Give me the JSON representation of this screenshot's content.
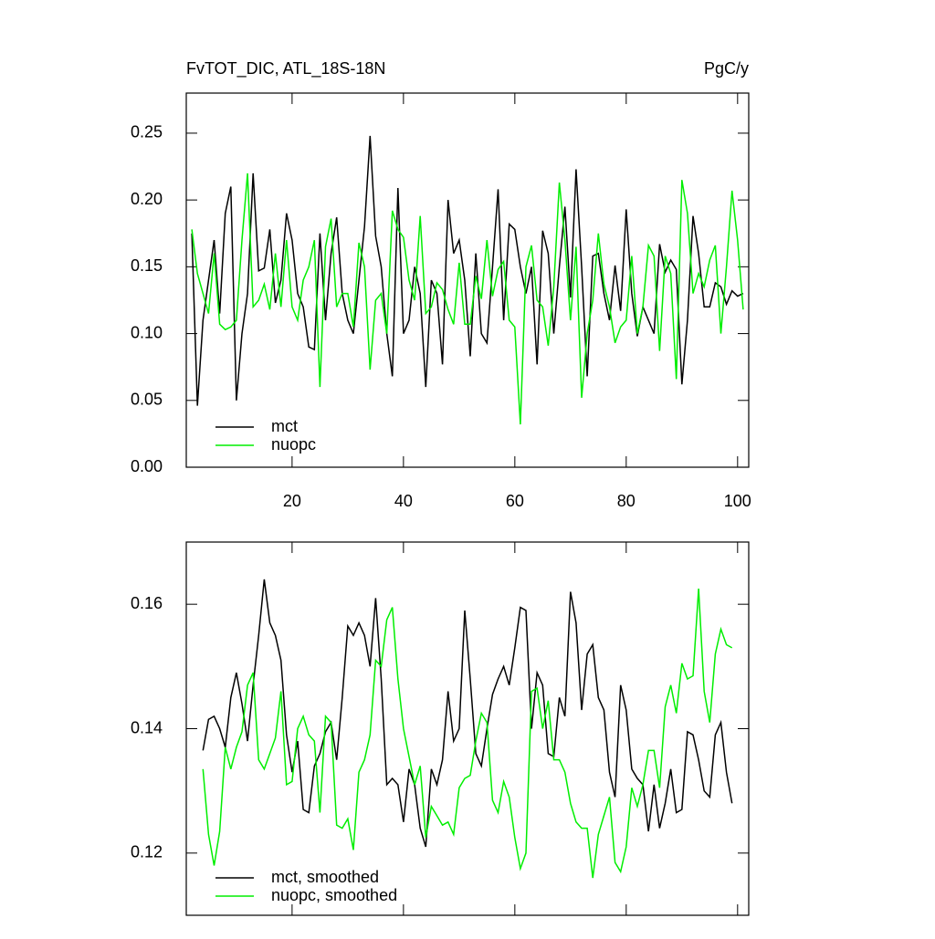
{
  "chart_data": [
    {
      "type": "line",
      "title": "FvTOT_DIC, ATL_18S-18N",
      "units": "PgC/y",
      "x": [
        2,
        3,
        4,
        5,
        6,
        7,
        8,
        9,
        10,
        11,
        12,
        13,
        14,
        15,
        16,
        17,
        18,
        19,
        20,
        21,
        22,
        23,
        24,
        25,
        26,
        27,
        28,
        29,
        30,
        31,
        32,
        33,
        34,
        35,
        36,
        37,
        38,
        39,
        40,
        41,
        42,
        43,
        44,
        45,
        46,
        47,
        48,
        49,
        50,
        51,
        52,
        53,
        54,
        55,
        56,
        57,
        58,
        59,
        60,
        61,
        62,
        63,
        64,
        65,
        66,
        67,
        68,
        69,
        70,
        71,
        72,
        73,
        74,
        75,
        76,
        77,
        78,
        79,
        80,
        81,
        82,
        83,
        84,
        85,
        86,
        87,
        88,
        89,
        90,
        91,
        92,
        93,
        94,
        95,
        96,
        97,
        98,
        99,
        100,
        101
      ],
      "series": [
        {
          "name": "mct",
          "color": "#000000",
          "values": [
            0.175,
            0.046,
            0.11,
            0.14,
            0.17,
            0.115,
            0.19,
            0.21,
            0.05,
            0.1,
            0.13,
            0.22,
            0.147,
            0.149,
            0.178,
            0.123,
            0.14,
            0.19,
            0.17,
            0.13,
            0.12,
            0.09,
            0.088,
            0.175,
            0.11,
            0.16,
            0.187,
            0.13,
            0.11,
            0.1,
            0.14,
            0.18,
            0.248,
            0.173,
            0.15,
            0.1,
            0.068,
            0.209,
            0.1,
            0.11,
            0.15,
            0.13,
            0.06,
            0.14,
            0.13,
            0.077,
            0.2,
            0.16,
            0.17,
            0.14,
            0.083,
            0.16,
            0.1,
            0.093,
            0.15,
            0.208,
            0.11,
            0.182,
            0.178,
            0.15,
            0.13,
            0.15,
            0.077,
            0.177,
            0.16,
            0.1,
            0.15,
            0.195,
            0.127,
            0.223,
            0.15,
            0.068,
            0.158,
            0.16,
            0.13,
            0.11,
            0.151,
            0.117,
            0.193,
            0.13,
            0.098,
            0.12,
            0.11,
            0.1,
            0.167,
            0.146,
            0.155,
            0.148,
            0.062,
            0.11,
            0.188,
            0.16,
            0.12,
            0.12,
            0.138,
            0.135,
            0.122,
            0.132,
            0.128,
            0.13
          ]
        },
        {
          "name": "nuopc",
          "color": "#00ee00",
          "values": [
            0.178,
            0.145,
            0.13,
            0.115,
            0.16,
            0.107,
            0.103,
            0.105,
            0.11,
            0.17,
            0.22,
            0.12,
            0.125,
            0.137,
            0.118,
            0.16,
            0.12,
            0.17,
            0.12,
            0.11,
            0.14,
            0.15,
            0.17,
            0.06,
            0.165,
            0.186,
            0.12,
            0.13,
            0.13,
            0.105,
            0.168,
            0.15,
            0.073,
            0.125,
            0.13,
            0.1,
            0.192,
            0.178,
            0.172,
            0.14,
            0.125,
            0.188,
            0.115,
            0.12,
            0.138,
            0.133,
            0.118,
            0.107,
            0.153,
            0.107,
            0.107,
            0.143,
            0.126,
            0.17,
            0.128,
            0.148,
            0.154,
            0.11,
            0.105,
            0.032,
            0.15,
            0.166,
            0.125,
            0.12,
            0.091,
            0.135,
            0.213,
            0.17,
            0.11,
            0.165,
            0.052,
            0.1,
            0.125,
            0.175,
            0.137,
            0.12,
            0.093,
            0.105,
            0.11,
            0.158,
            0.1,
            0.12,
            0.166,
            0.158,
            0.087,
            0.158,
            0.145,
            0.066,
            0.215,
            0.19,
            0.13,
            0.145,
            0.135,
            0.155,
            0.166,
            0.1,
            0.15,
            0.207,
            0.17,
            0.118
          ]
        }
      ],
      "xlim": [
        1,
        102
      ],
      "xticks": [
        20,
        40,
        60,
        80,
        100
      ],
      "show_xtick_labels": true,
      "ylim": [
        0,
        0.28
      ],
      "yticks": [
        {
          "value": 0,
          "label": "0.00"
        },
        0.05,
        {
          "value": 0.1,
          "label": "0.10"
        },
        0.15,
        {
          "value": 0.2,
          "label": "0.20"
        },
        0.25
      ]
    },
    {
      "type": "line",
      "x": [
        4,
        5,
        6,
        7,
        8,
        9,
        10,
        11,
        12,
        13,
        14,
        15,
        16,
        17,
        18,
        19,
        20,
        21,
        22,
        23,
        24,
        25,
        26,
        27,
        28,
        29,
        30,
        31,
        32,
        33,
        34,
        35,
        36,
        37,
        38,
        39,
        40,
        41,
        42,
        43,
        44,
        45,
        46,
        47,
        48,
        49,
        50,
        51,
        52,
        53,
        54,
        55,
        56,
        57,
        58,
        59,
        60,
        61,
        62,
        63,
        64,
        65,
        66,
        67,
        68,
        69,
        70,
        71,
        72,
        73,
        74,
        75,
        76,
        77,
        78,
        79,
        80,
        81,
        82,
        83,
        84,
        85,
        86,
        87,
        88,
        89,
        90,
        91,
        92,
        93,
        94,
        95,
        96,
        97,
        98,
        99
      ],
      "series": [
        {
          "name": "mct, smoothed",
          "color": "#000000",
          "values": [
            0.1365,
            0.1415,
            0.142,
            0.14,
            0.137,
            0.145,
            0.149,
            0.144,
            0.138,
            0.147,
            0.155,
            0.164,
            0.157,
            0.155,
            0.151,
            0.139,
            0.133,
            0.138,
            0.127,
            0.1265,
            0.134,
            0.136,
            0.1395,
            0.141,
            0.135,
            0.145,
            0.1565,
            0.155,
            0.157,
            0.155,
            0.15,
            0.161,
            0.148,
            0.131,
            0.132,
            0.131,
            0.125,
            0.1335,
            0.131,
            0.124,
            0.121,
            0.1335,
            0.131,
            0.135,
            0.146,
            0.138,
            0.14,
            0.159,
            0.148,
            0.136,
            0.134,
            0.14,
            0.1455,
            0.148,
            0.15,
            0.147,
            0.153,
            0.1595,
            0.159,
            0.14,
            0.149,
            0.147,
            0.136,
            0.1355,
            0.145,
            0.142,
            0.162,
            0.157,
            0.143,
            0.152,
            0.1535,
            0.145,
            0.143,
            0.133,
            0.129,
            0.147,
            0.143,
            0.1335,
            0.132,
            0.131,
            0.1235,
            0.131,
            0.124,
            0.128,
            0.1335,
            0.1265,
            0.127,
            0.1395,
            0.139,
            0.135,
            0.13,
            0.129,
            0.139,
            0.141,
            0.133,
            0.128
          ]
        },
        {
          "name": "nuopc, smoothed",
          "color": "#00ee00",
          "values": [
            0.1335,
            0.123,
            0.118,
            0.1235,
            0.137,
            0.1335,
            0.137,
            0.1395,
            0.147,
            0.149,
            0.135,
            0.1335,
            0.136,
            0.1385,
            0.146,
            0.131,
            0.1315,
            0.14,
            0.142,
            0.139,
            0.138,
            0.1265,
            0.142,
            0.141,
            0.1245,
            0.124,
            0.1255,
            0.1205,
            0.133,
            0.135,
            0.139,
            0.151,
            0.15,
            0.1575,
            0.1595,
            0.148,
            0.14,
            0.1355,
            0.131,
            0.134,
            0.1225,
            0.1275,
            0.126,
            0.1245,
            0.125,
            0.123,
            0.1305,
            0.132,
            0.1325,
            0.138,
            0.1425,
            0.141,
            0.1285,
            0.1265,
            0.1315,
            0.129,
            0.1225,
            0.1175,
            0.12,
            0.146,
            0.1465,
            0.14,
            0.1445,
            0.135,
            0.135,
            0.133,
            0.128,
            0.125,
            0.124,
            0.124,
            0.116,
            0.123,
            0.126,
            0.129,
            0.1185,
            0.117,
            0.121,
            0.1305,
            0.1275,
            0.131,
            0.1365,
            0.1365,
            0.1305,
            0.1435,
            0.147,
            0.1425,
            0.1505,
            0.148,
            0.1485,
            0.1625,
            0.146,
            0.141,
            0.152,
            0.156,
            0.1535,
            0.153
          ]
        }
      ],
      "xlim": [
        1,
        102
      ],
      "xticks": [
        20,
        40,
        60,
        80,
        100
      ],
      "show_xtick_labels": false,
      "ylim": [
        0.11,
        0.17
      ],
      "yticks": [
        0.12,
        0.14,
        0.16
      ]
    }
  ]
}
